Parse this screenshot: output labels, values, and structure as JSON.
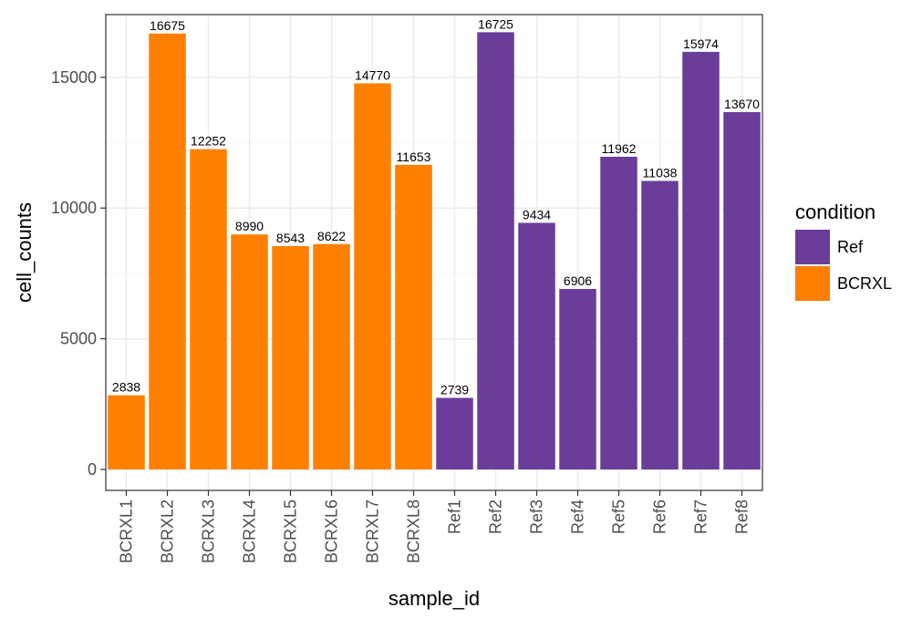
{
  "chart_data": {
    "type": "bar",
    "title": "",
    "xlabel": "sample_id",
    "ylabel": "cell_counts",
    "ylim": [
      -800,
      17400
    ],
    "yticks": [
      0,
      5000,
      10000,
      15000
    ],
    "grid": true,
    "legend_position": "right",
    "legend_title": "condition",
    "categories": [
      "BCRXL1",
      "BCRXL2",
      "BCRXL3",
      "BCRXL4",
      "BCRXL5",
      "BCRXL6",
      "BCRXL7",
      "BCRXL8",
      "Ref1",
      "Ref2",
      "Ref3",
      "Ref4",
      "Ref5",
      "Ref6",
      "Ref7",
      "Ref8"
    ],
    "values": [
      2838,
      16675,
      12252,
      8990,
      8543,
      8622,
      14770,
      11653,
      2739,
      16725,
      9434,
      6906,
      11962,
      11038,
      15974,
      13670
    ],
    "groups": [
      "BCRXL",
      "BCRXL",
      "BCRXL",
      "BCRXL",
      "BCRXL",
      "BCRXL",
      "BCRXL",
      "BCRXL",
      "Ref",
      "Ref",
      "Ref",
      "Ref",
      "Ref",
      "Ref",
      "Ref",
      "Ref"
    ],
    "legend": [
      {
        "name": "Ref",
        "color": "#6a3d9a"
      },
      {
        "name": "BCRXL",
        "color": "#ff7f00"
      }
    ],
    "colors": {
      "Ref": "#6a3d9a",
      "BCRXL": "#ff7f00"
    }
  }
}
